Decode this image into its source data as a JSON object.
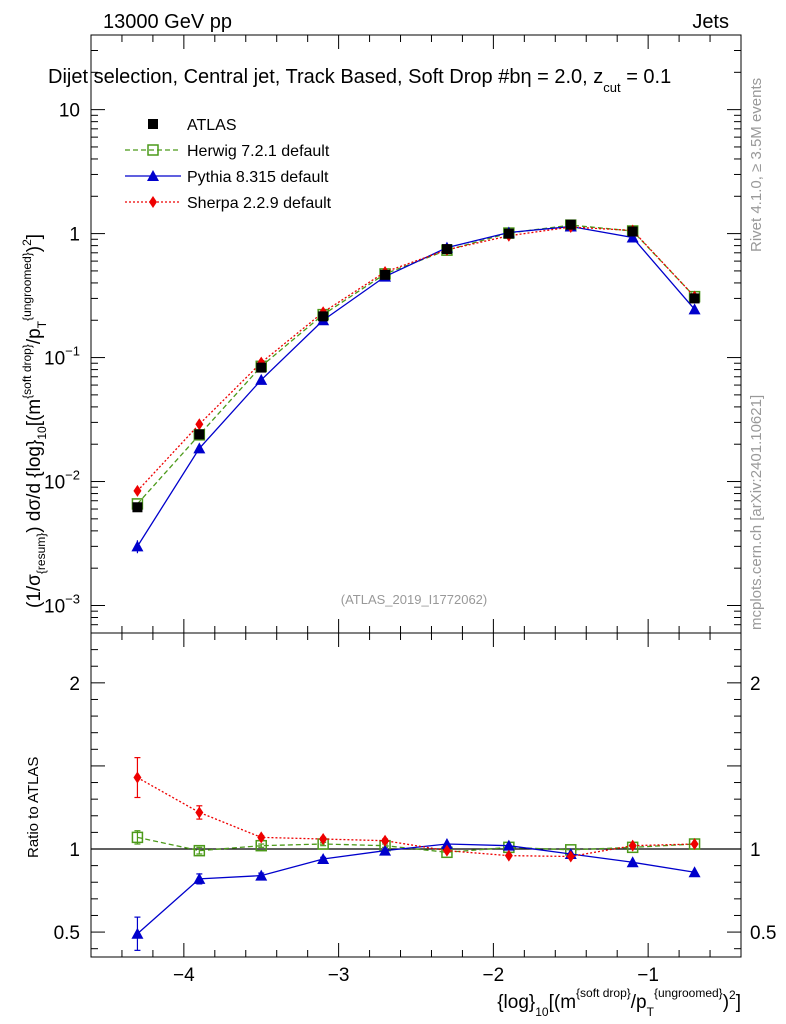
{
  "chart_data": {
    "type": "line",
    "header": {
      "energy": "13000 GeV pp",
      "process": "Jets"
    },
    "title": {
      "main": "Dijet selection, Central jet, Track Based, Soft Drop #b",
      "beta": "η = 2.0, z",
      "cut": "cut",
      "zval": " = 0.1"
    },
    "watermark": "(ATLAS_2019_I1772062)",
    "side_labels": {
      "rivet": "Rivet 4.1.0, ≥ 3.5M events",
      "mcplots": "mcplots.cern.ch [arXiv:2401.10621]"
    },
    "ylabel_main": {
      "a": "(1/σ",
      "b": "{resum}",
      "c": ") dσ/d {log}",
      "d": "10",
      "e": "[(m",
      "f": "{soft drop}",
      "g": "/p",
      "h": "T",
      "i": "{ungroomed}",
      "j": ")",
      "k": "2",
      "l": "]"
    },
    "ylabel_ratio": "Ratio to ATLAS",
    "xlabel": {
      "a": "{log}",
      "b": "10",
      "c": "[(m",
      "d": "{soft drop}",
      "e": "/p",
      "f": "T",
      "g": "{ungroomed}",
      "h": ")",
      "i": "2",
      "j": "]"
    },
    "x": [
      -4.3,
      -3.9,
      -3.5,
      -3.1,
      -2.7,
      -2.3,
      -1.9,
      -1.5,
      -1.1,
      -0.7
    ],
    "xlim": [
      -4.6,
      -0.4
    ],
    "ylim_main": [
      0.0006,
      40
    ],
    "ylim_ratio": [
      0.35,
      2.3
    ],
    "x_ticks": [
      {
        "v": -4,
        "label": "−4"
      },
      {
        "v": -3,
        "label": "−3"
      },
      {
        "v": -2,
        "label": "−2"
      },
      {
        "v": -1,
        "label": "−1"
      }
    ],
    "y_ticks_main": [
      {
        "v": 0.001,
        "base": "10",
        "exp": "−3"
      },
      {
        "v": 0.01,
        "base": "10",
        "exp": "−2"
      },
      {
        "v": 0.1,
        "base": "10",
        "exp": "−1"
      },
      {
        "v": 1,
        "base": "1",
        "exp": ""
      },
      {
        "v": 10,
        "base": "10",
        "exp": ""
      }
    ],
    "y_ticks_ratio": [
      {
        "v": 0.5,
        "label": "0.5"
      },
      {
        "v": 1,
        "label": "1"
      },
      {
        "v": 2,
        "label": "2"
      }
    ],
    "series": [
      {
        "name": "ATLAS",
        "color": "#000000",
        "marker": "square-filled",
        "dash": "none",
        "values": [
          0.0062,
          0.024,
          0.083,
          0.215,
          0.465,
          0.75,
          1.0,
          1.18,
          1.04,
          0.3
        ],
        "ratio": [
          1,
          1,
          1,
          1,
          1,
          1,
          1,
          1,
          1,
          1
        ],
        "ratio_err": [
          0,
          0,
          0,
          0,
          0,
          0,
          0,
          0,
          0,
          0
        ]
      },
      {
        "name": "Herwig 7.2.1 default",
        "color": "#4c9a1a",
        "marker": "square-open",
        "dash": "5,3",
        "values": [
          0.0066,
          0.0238,
          0.085,
          0.222,
          0.473,
          0.735,
          1.01,
          1.17,
          1.05,
          0.31
        ],
        "ratio": [
          1.07,
          0.99,
          1.02,
          1.03,
          1.02,
          0.98,
          1.01,
          0.995,
          1.01,
          1.03
        ],
        "ratio_err": [
          0.04,
          0.02,
          0.01,
          0.01,
          0.01,
          0,
          0,
          0,
          0,
          0
        ]
      },
      {
        "name": "Pythia 8.315 default",
        "color": "#0000cc",
        "marker": "triangle",
        "dash": "none",
        "values": [
          0.003,
          0.0185,
          0.066,
          0.2,
          0.45,
          0.77,
          1.02,
          1.14,
          0.93,
          0.245
        ],
        "ratio": [
          0.49,
          0.82,
          0.84,
          0.94,
          0.99,
          1.03,
          1.02,
          0.97,
          0.92,
          0.86
        ],
        "ratio_err": [
          0.1,
          0.03,
          0.015,
          0.01,
          0.01,
          0,
          0,
          0,
          0,
          0
        ]
      },
      {
        "name": "Sherpa 2.2.9 default",
        "color": "#ee0000",
        "marker": "diamond",
        "dash": "2,2",
        "values": [
          0.0084,
          0.029,
          0.091,
          0.232,
          0.49,
          0.74,
          0.96,
          1.13,
          1.06,
          0.31
        ],
        "ratio": [
          1.43,
          1.22,
          1.07,
          1.06,
          1.05,
          0.99,
          0.96,
          0.955,
          1.02,
          1.03
        ],
        "ratio_err": [
          0.12,
          0.04,
          0.01,
          0.01,
          0.01,
          0,
          0,
          0,
          0,
          0
        ]
      }
    ]
  }
}
